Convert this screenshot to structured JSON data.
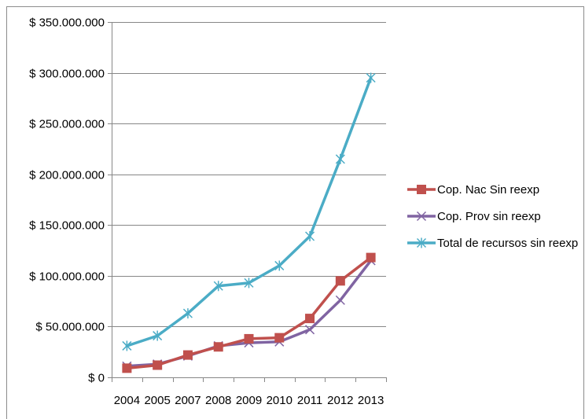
{
  "chart_data": {
    "type": "line",
    "categories": [
      "2004",
      "2005",
      "2007",
      "2008",
      "2009",
      "2010",
      "2011",
      "2012",
      "2013"
    ],
    "series": [
      {
        "name": "Cop. Nac Sin reexp",
        "color": "#C0504D",
        "marker": "square",
        "values": [
          9000000,
          12000000,
          22000000,
          30000000,
          38000000,
          39000000,
          58000000,
          95000000,
          118000000
        ]
      },
      {
        "name": "Cop. Prov sin reexp",
        "color": "#8064A2",
        "marker": "x",
        "values": [
          11000000,
          13000000,
          21000000,
          31000000,
          34000000,
          35000000,
          47000000,
          76000000,
          115000000
        ]
      },
      {
        "name": "Total de recursos sin reexp",
        "color": "#4BACC6",
        "marker": "star",
        "values": [
          31000000,
          41000000,
          63000000,
          90000000,
          93000000,
          110000000,
          139000000,
          215000000,
          295000000
        ]
      }
    ],
    "y_ticks": [
      {
        "value": 0,
        "label": "$ 0"
      },
      {
        "value": 50000000,
        "label": "$ 50.000.000"
      },
      {
        "value": 100000000,
        "label": "$ 100.000.000"
      },
      {
        "value": 150000000,
        "label": "$ 150.000.000"
      },
      {
        "value": 200000000,
        "label": "$ 200.000.000"
      },
      {
        "value": 250000000,
        "label": "$ 250.000.000"
      },
      {
        "value": 300000000,
        "label": "$ 300.000.000"
      },
      {
        "value": 350000000,
        "label": "$ 350.000.000"
      }
    ],
    "ylim": [
      0,
      350000000
    ],
    "grid": true,
    "legend_position": "right",
    "title": "",
    "xlabel": "",
    "ylabel": ""
  }
}
